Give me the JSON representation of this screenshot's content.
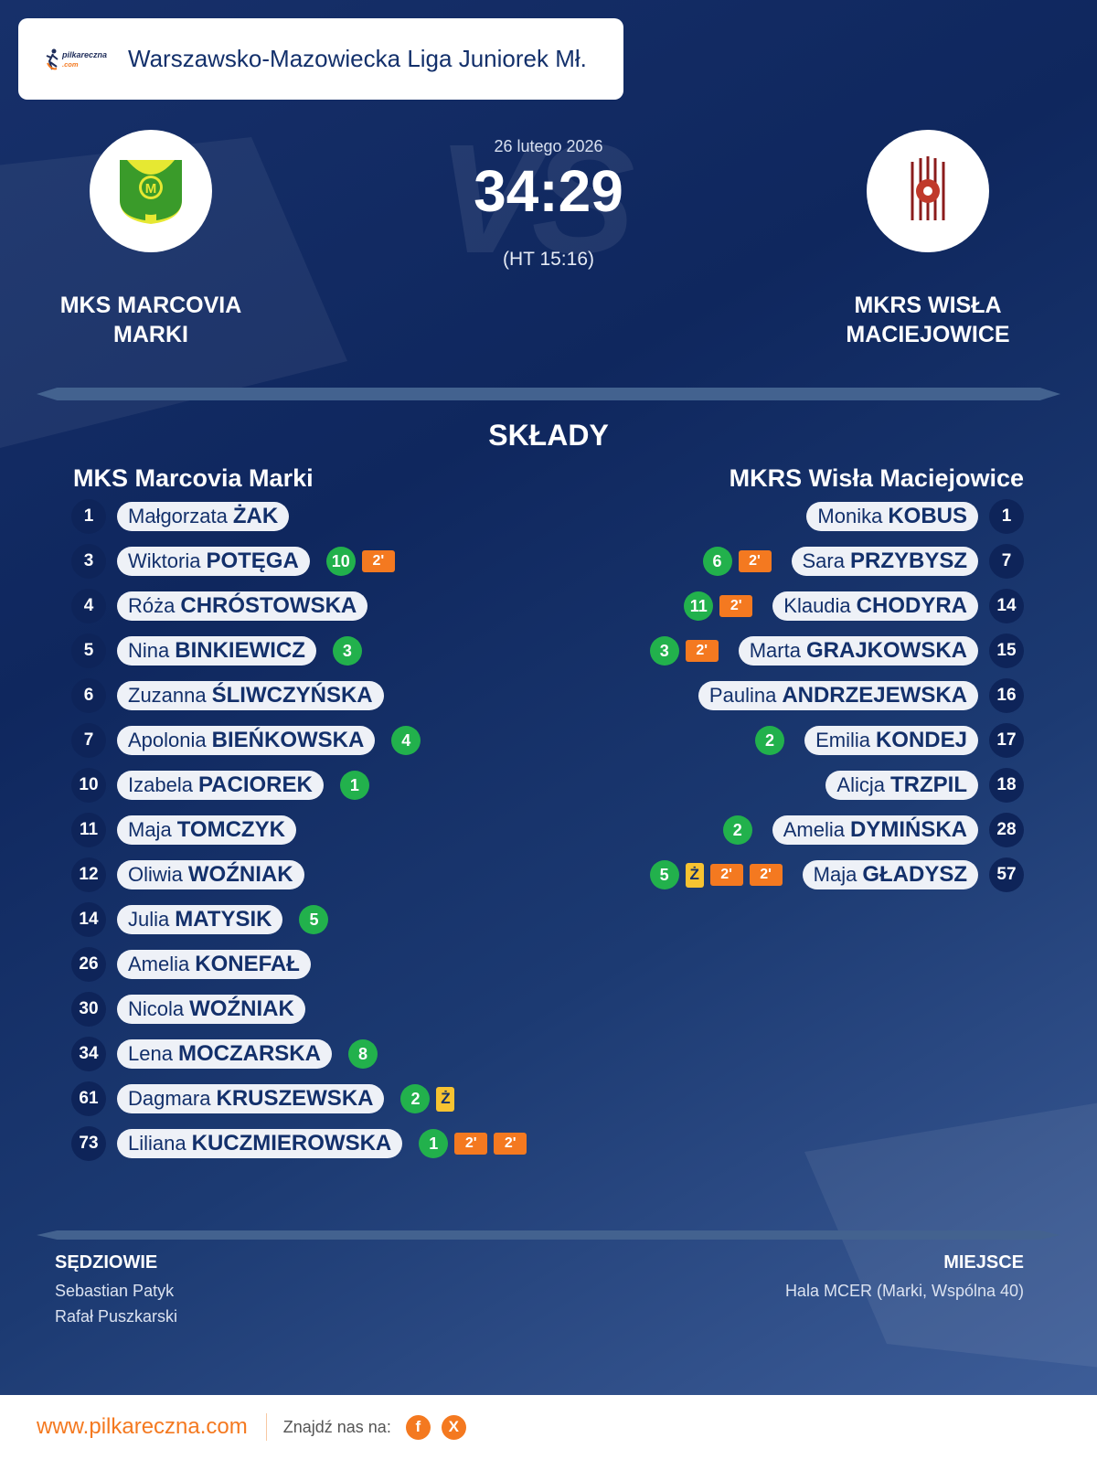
{
  "header": {
    "logo_text": "pilkareczna.com",
    "league": "Warszawsko-Mazowiecka Liga Juniorek Mł."
  },
  "match": {
    "date": "26 lutego 2026",
    "score": "34:29",
    "halftime": "(HT 15:16)",
    "vs_watermark": "VS",
    "home": {
      "name_line1": "MKS MARCOVIA",
      "name_line2": "MARKI",
      "crest_letter": "M",
      "crest_colors": [
        "#e6e832",
        "#3a9b2a"
      ]
    },
    "away": {
      "name_line1": "MKRS WISŁA",
      "name_line2": "MACIEJOWICE",
      "crest_colors": [
        "#8b1c1c",
        "#ffffff"
      ]
    }
  },
  "lineups": {
    "title": "SKŁADY",
    "home": {
      "team": "MKS Marcovia Marki",
      "players": [
        {
          "no": "1",
          "first": "Małgorzata",
          "last": "ŻAK",
          "events": []
        },
        {
          "no": "3",
          "first": "Wiktoria",
          "last": "POTĘGA",
          "events": [
            {
              "type": "goals",
              "v": "10"
            },
            {
              "type": "2min",
              "v": "2'"
            }
          ]
        },
        {
          "no": "4",
          "first": "Róża",
          "last": "CHRÓSTOWSKA",
          "events": []
        },
        {
          "no": "5",
          "first": "Nina",
          "last": "BINKIEWICZ",
          "events": [
            {
              "type": "goals",
              "v": "3"
            }
          ]
        },
        {
          "no": "6",
          "first": "Zuzanna",
          "last": "ŚLIWCZYŃSKA",
          "events": []
        },
        {
          "no": "7",
          "first": "Apolonia",
          "last": "BIEŃKOWSKA",
          "events": [
            {
              "type": "goals",
              "v": "4"
            }
          ]
        },
        {
          "no": "10",
          "first": "Izabela",
          "last": "PACIOREK",
          "events": [
            {
              "type": "goals",
              "v": "1"
            }
          ]
        },
        {
          "no": "11",
          "first": "Maja",
          "last": "TOMCZYK",
          "events": []
        },
        {
          "no": "12",
          "first": "Oliwia",
          "last": "WOŹNIAK",
          "events": []
        },
        {
          "no": "14",
          "first": "Julia",
          "last": "MATYSIK",
          "events": [
            {
              "type": "goals",
              "v": "5"
            }
          ]
        },
        {
          "no": "26",
          "first": "Amelia",
          "last": "KONEFAŁ",
          "events": []
        },
        {
          "no": "30",
          "first": "Nicola",
          "last": "WOŹNIAK",
          "events": []
        },
        {
          "no": "34",
          "first": "Lena",
          "last": "MOCZARSKA",
          "events": [
            {
              "type": "goals",
              "v": "8"
            }
          ]
        },
        {
          "no": "61",
          "first": "Dagmara",
          "last": "KRUSZEWSKA",
          "events": [
            {
              "type": "goals",
              "v": "2"
            },
            {
              "type": "yellow",
              "v": "Ż"
            }
          ]
        },
        {
          "no": "73",
          "first": "Liliana",
          "last": "KUCZMIEROWSKA",
          "events": [
            {
              "type": "goals",
              "v": "1"
            },
            {
              "type": "2min",
              "v": "2'"
            },
            {
              "type": "2min",
              "v": "2'"
            }
          ]
        }
      ]
    },
    "away": {
      "team": "MKRS Wisła Maciejowice",
      "players": [
        {
          "no": "1",
          "first": "Monika",
          "last": "KOBUS",
          "events": []
        },
        {
          "no": "7",
          "first": "Sara",
          "last": "PRZYBYSZ",
          "events": [
            {
              "type": "goals",
              "v": "6"
            },
            {
              "type": "2min",
              "v": "2'"
            }
          ]
        },
        {
          "no": "14",
          "first": "Klaudia",
          "last": "CHODYRA",
          "events": [
            {
              "type": "goals",
              "v": "11"
            },
            {
              "type": "2min",
              "v": "2'"
            }
          ]
        },
        {
          "no": "15",
          "first": "Marta",
          "last": "GRAJKOWSKA",
          "events": [
            {
              "type": "goals",
              "v": "3"
            },
            {
              "type": "2min",
              "v": "2'"
            }
          ]
        },
        {
          "no": "16",
          "first": "Paulina",
          "last": "ANDRZEJEWSKA",
          "events": []
        },
        {
          "no": "17",
          "first": "Emilia",
          "last": "KONDEJ",
          "events": [
            {
              "type": "goals",
              "v": "2"
            }
          ]
        },
        {
          "no": "18",
          "first": "Alicja",
          "last": "TRZPIL",
          "events": []
        },
        {
          "no": "28",
          "first": "Amelia",
          "last": "DYMIŃSKA",
          "events": [
            {
              "type": "goals",
              "v": "2"
            }
          ]
        },
        {
          "no": "57",
          "first": "Maja",
          "last": "GŁADYSZ",
          "events": [
            {
              "type": "goals",
              "v": "5"
            },
            {
              "type": "yellow",
              "v": "Ż"
            },
            {
              "type": "2min",
              "v": "2'"
            },
            {
              "type": "2min",
              "v": "2'"
            }
          ]
        }
      ]
    }
  },
  "officials": {
    "title": "SĘDZIOWIE",
    "names": [
      "Sebastian Patyk",
      "Rafał Puszkarski"
    ]
  },
  "venue": {
    "title": "MIEJSCE",
    "text": "Hala MCER (Marki, Wspólna 40)"
  },
  "footer": {
    "site": "www.pilkareczna.com",
    "find_us": "Znajdź nas na:",
    "social": [
      {
        "icon": "facebook-icon",
        "label": "f"
      },
      {
        "icon": "x-icon",
        "label": "X"
      }
    ]
  },
  "colors": {
    "goals": "#22b14c",
    "two_min": "#f47920",
    "yellow": "#f7c331",
    "navy": "#13306b"
  }
}
